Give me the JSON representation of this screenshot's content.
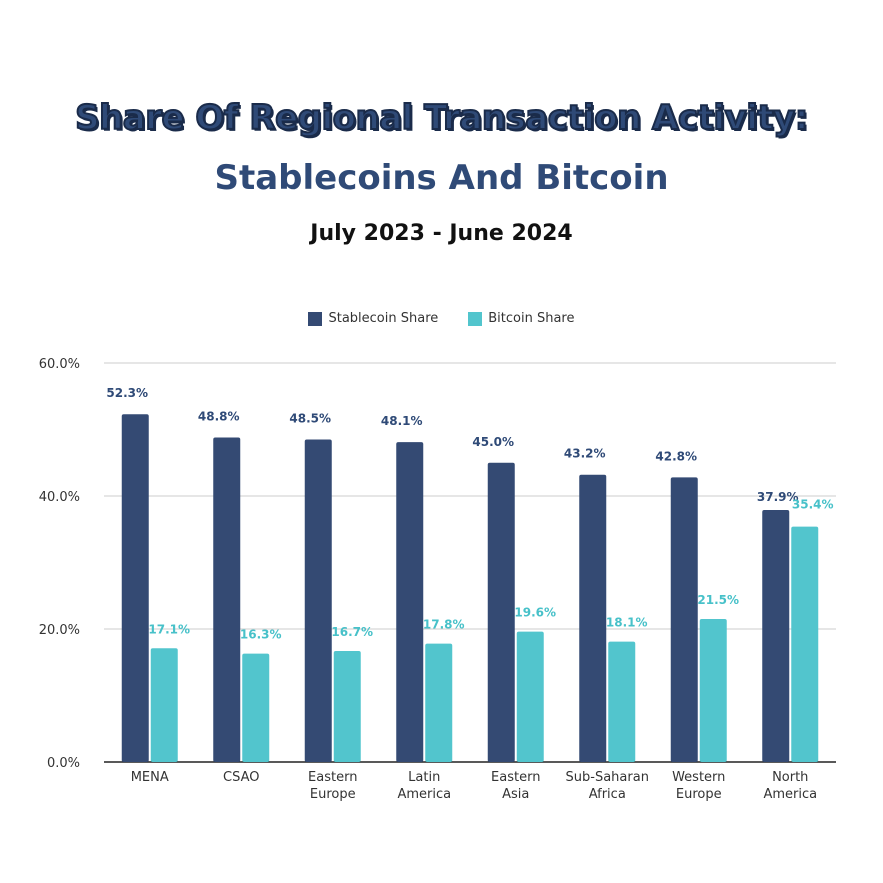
{
  "header": {
    "title": "Share Of Regional Transaction Activity:",
    "subtitle": "Stablecoins And Bitcoin",
    "period": "July 2023 - June 2024"
  },
  "legend": {
    "stablecoin": "Stablecoin Share",
    "bitcoin": "Bitcoin Share"
  },
  "colors": {
    "stablecoin": "#344a73",
    "bitcoin": "#52c5cd",
    "stablecoin_label": "#2f4a77",
    "bitcoin_label": "#47c1c9",
    "grid": "#cccccc",
    "axis": "#222222"
  },
  "chart_data": {
    "type": "bar",
    "title": "Share Of Regional Transaction Activity: Stablecoins And Bitcoin",
    "subtitle": "July 2023 - June 2024",
    "xlabel": "",
    "ylabel": "",
    "categories": [
      [
        "MENA"
      ],
      [
        "CSAO"
      ],
      [
        "Eastern",
        "Europe"
      ],
      [
        "Latin",
        "America"
      ],
      [
        "Eastern",
        "Asia"
      ],
      [
        "Sub-Saharan",
        "Africa"
      ],
      [
        "Western",
        "Europe"
      ],
      [
        "North",
        "America"
      ]
    ],
    "series": [
      {
        "name": "Stablecoin Share",
        "values": [
          52.3,
          48.8,
          48.5,
          48.1,
          45.0,
          43.2,
          42.8,
          37.9
        ],
        "labels": [
          "52.3%",
          "48.8%",
          "48.5%",
          "48.1%",
          "45.0%",
          "43.2%",
          "42.8%",
          "37.9%"
        ]
      },
      {
        "name": "Bitcoin Share",
        "values": [
          17.1,
          16.3,
          16.7,
          17.8,
          19.6,
          18.1,
          21.5,
          35.4
        ],
        "labels": [
          "17.1%",
          "16.3%",
          "16.7%",
          "17.8%",
          "19.6%",
          "18.1%",
          "21.5%",
          "35.4%"
        ]
      }
    ],
    "ylim": [
      0,
      60
    ],
    "yticks": [
      0,
      20,
      40,
      60
    ],
    "ytick_labels": [
      "0.0%",
      "20.0%",
      "40.0%",
      "60.0%"
    ],
    "grid": true,
    "legend_position": "top-center"
  }
}
